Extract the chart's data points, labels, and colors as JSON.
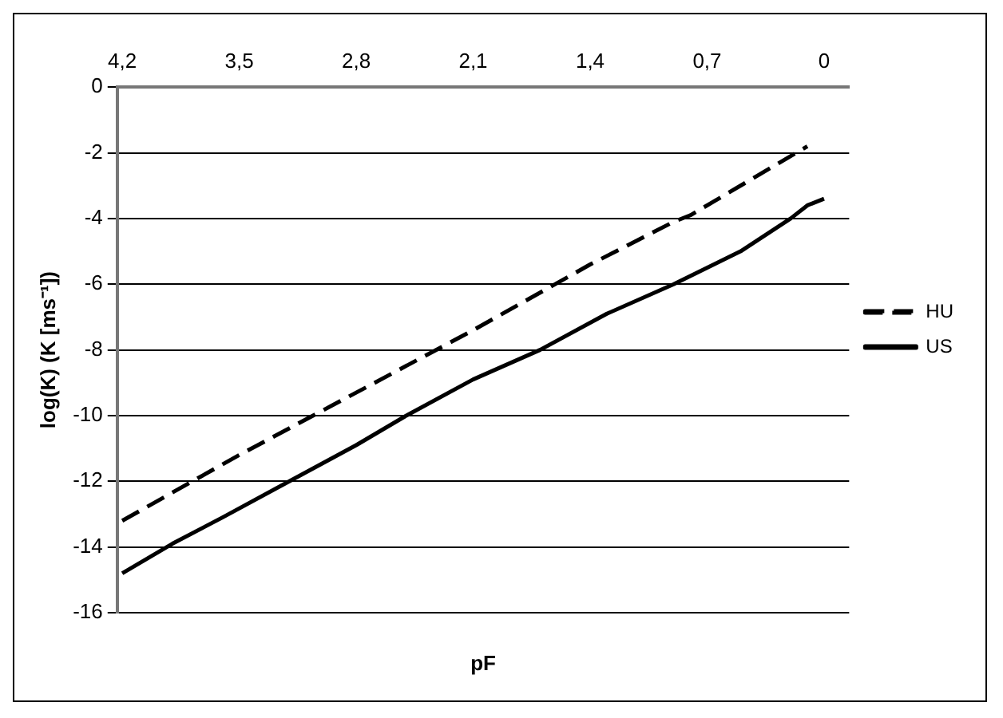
{
  "chart_data": {
    "type": "line",
    "xlabel": "pF",
    "ylabel": "log(K) (K [ms⁻¹])",
    "xlim": [
      4.23,
      -0.15
    ],
    "xticks": [
      {
        "value": 4.2,
        "label": "4,2"
      },
      {
        "value": 3.5,
        "label": "3,5"
      },
      {
        "value": 2.8,
        "label": "2,8"
      },
      {
        "value": 2.1,
        "label": "2,1"
      },
      {
        "value": 1.4,
        "label": "1,4"
      },
      {
        "value": 0.7,
        "label": "0,7"
      },
      0
    ],
    "ylim": [
      -16,
      0
    ],
    "yticks": [
      -16,
      -14,
      -12,
      -10,
      -8,
      -6,
      -4,
      -2,
      0
    ],
    "grid": "y",
    "legend": "right",
    "marker": "none",
    "series": [
      {
        "name": "HU",
        "color": "#000000",
        "line_style": "dashed",
        "x": [
          4.2,
          3.5,
          2.8,
          2.1,
          1.4,
          0.9,
          0.8,
          0.1
        ],
        "values": [
          -13.2,
          -11.2,
          -9.3,
          -7.4,
          -5.4,
          -4.1,
          -3.9,
          -1.8
        ]
      },
      {
        "name": "US",
        "color": "#000000",
        "line_style": "solid",
        "x": [
          4.2,
          3.9,
          3.6,
          3.2,
          2.8,
          2.5,
          2.1,
          1.7,
          1.3,
          0.9,
          0.5,
          0.2,
          0.1,
          0
        ],
        "values": [
          -14.8,
          -13.9,
          -13.1,
          -12.0,
          -10.9,
          -10.0,
          -8.9,
          -8.0,
          -6.9,
          -6.0,
          -5.0,
          -4.0,
          -3.6,
          -3.4
        ]
      }
    ]
  }
}
